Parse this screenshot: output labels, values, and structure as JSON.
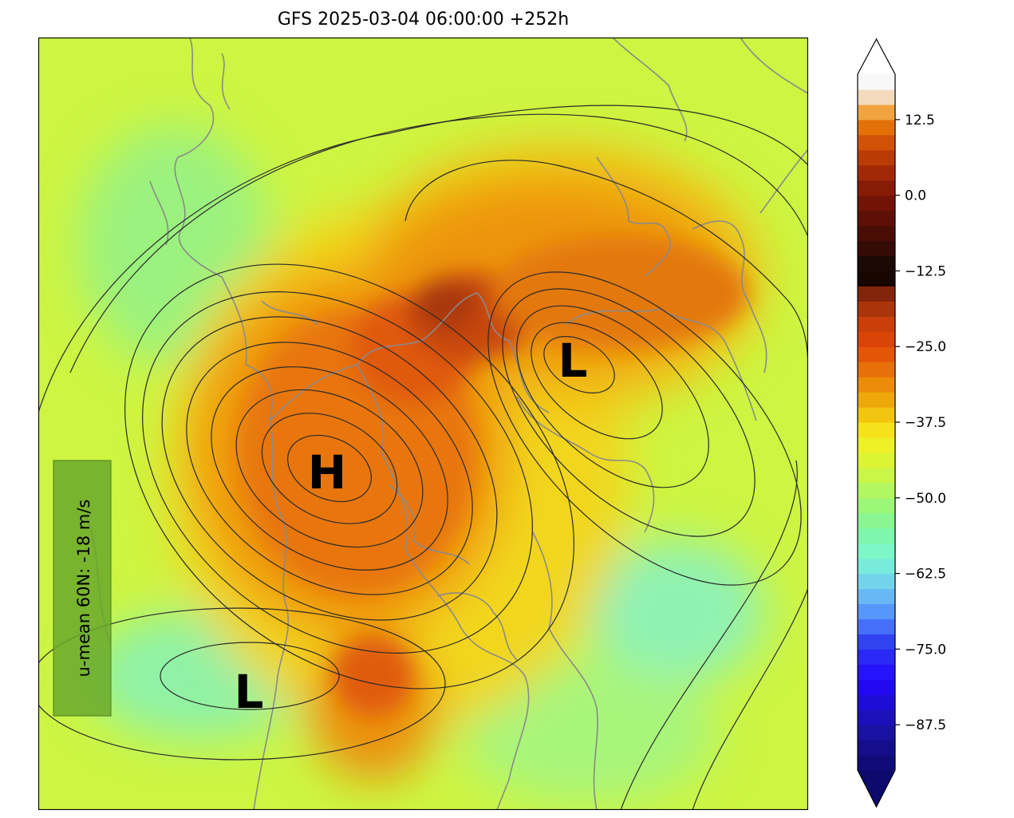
{
  "title": "GFS 2025-03-04 06:00:00 +252h",
  "map": {
    "pressure_labels": [
      {
        "text": "H",
        "kind": "high"
      },
      {
        "text": "L",
        "kind": "low"
      },
      {
        "text": "L",
        "kind": "low"
      }
    ],
    "umean_label": "u-mean 60N: -18 m/s",
    "umean_box_color": "#6aa82a"
  },
  "colorbar": {
    "ticks": [
      "12.5",
      "0.0",
      "−12.5",
      "−25.0",
      "−37.5",
      "−50.0",
      "−62.5",
      "−75.0",
      "−87.5"
    ],
    "tick_values": [
      12.5,
      0.0,
      -12.5,
      -25.0,
      -37.5,
      -50.0,
      -62.5,
      -75.0,
      -87.5
    ],
    "range": [
      -95,
      20
    ],
    "extend": "both",
    "colormap_stops": [
      {
        "value": -95,
        "color": "#0d0a6e"
      },
      {
        "value": -88,
        "color": "#1a12a8"
      },
      {
        "value": -80,
        "color": "#2208ff"
      },
      {
        "value": -74,
        "color": "#2f3df0"
      },
      {
        "value": -70,
        "color": "#4f86ff"
      },
      {
        "value": -65,
        "color": "#6fc8f2"
      },
      {
        "value": -60,
        "color": "#7cf7d4"
      },
      {
        "value": -55,
        "color": "#7ff59f"
      },
      {
        "value": -50,
        "color": "#a6f76c"
      },
      {
        "value": -45,
        "color": "#d4f53b"
      },
      {
        "value": -40,
        "color": "#f7f020"
      },
      {
        "value": -35,
        "color": "#f0b60a"
      },
      {
        "value": -30,
        "color": "#ea7e08"
      },
      {
        "value": -25,
        "color": "#e34706"
      },
      {
        "value": -20,
        "color": "#c03b0a"
      },
      {
        "value": -16,
        "color": "#7e230a"
      },
      {
        "value": -14,
        "color": "#1c0600"
      },
      {
        "value": -12.5,
        "color": "#0a0704"
      },
      {
        "value": -10,
        "color": "#2a0a04"
      },
      {
        "value": -5,
        "color": "#550e06"
      },
      {
        "value": 0,
        "color": "#7a1406"
      },
      {
        "value": 5,
        "color": "#b02f06"
      },
      {
        "value": 10,
        "color": "#dc5e06"
      },
      {
        "value": 13,
        "color": "#ee8c0a"
      },
      {
        "value": 15,
        "color": "#f2c896"
      },
      {
        "value": 18,
        "color": "#f4f4f4"
      },
      {
        "value": 20,
        "color": "#ffffff"
      }
    ]
  }
}
